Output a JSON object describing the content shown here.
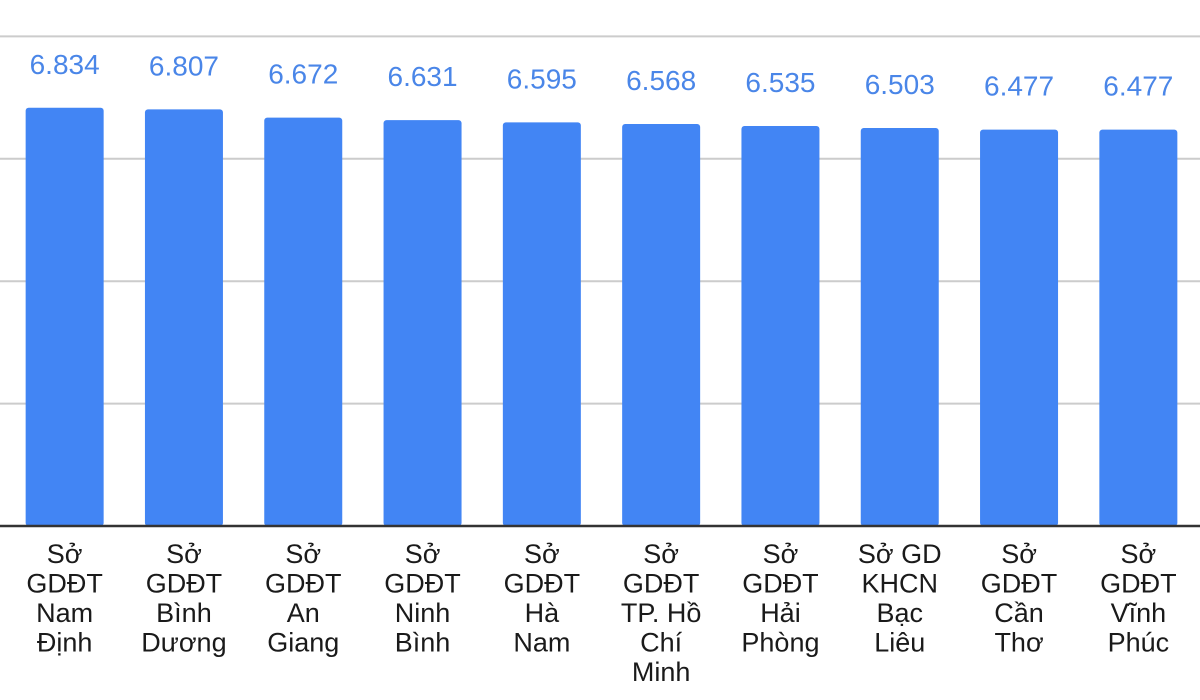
{
  "chart_data": {
    "type": "bar",
    "title": "",
    "xlabel": "",
    "ylabel": "",
    "ylim": [
      0,
      8.5
    ],
    "grid": true,
    "bar_color": "#4285f4",
    "label_color": "#4a86e8",
    "categories": [
      [
        "Sở",
        "GDĐT",
        "Nam",
        "Định"
      ],
      [
        "Sở",
        "GDĐT",
        "Bình",
        "Dương"
      ],
      [
        "Sở",
        "GDĐT",
        "An",
        "Giang"
      ],
      [
        "Sở",
        "GDĐT",
        "Ninh",
        "Bình"
      ],
      [
        "Sở",
        "GDĐT",
        "Hà",
        "Nam"
      ],
      [
        "Sở",
        "GDĐT",
        "TP. Hồ",
        "Chí",
        "Minh"
      ],
      [
        "Sở",
        "GDĐT",
        "Hải",
        "Phòng"
      ],
      [
        "Sở GD",
        "KHCN",
        "Bạc",
        "Liêu"
      ],
      [
        "Sở",
        "GDĐT",
        "Cần",
        "Thơ"
      ],
      [
        "Sở",
        "GDĐT",
        "Vĩnh",
        "Phúc"
      ]
    ],
    "values": [
      6.834,
      6.807,
      6.672,
      6.631,
      6.595,
      6.568,
      6.535,
      6.503,
      6.477,
      6.477
    ],
    "value_labels": [
      "6.834",
      "6.807",
      "6.672",
      "6.631",
      "6.595",
      "6.568",
      "6.535",
      "6.503",
      "6.477",
      "6.477"
    ]
  }
}
